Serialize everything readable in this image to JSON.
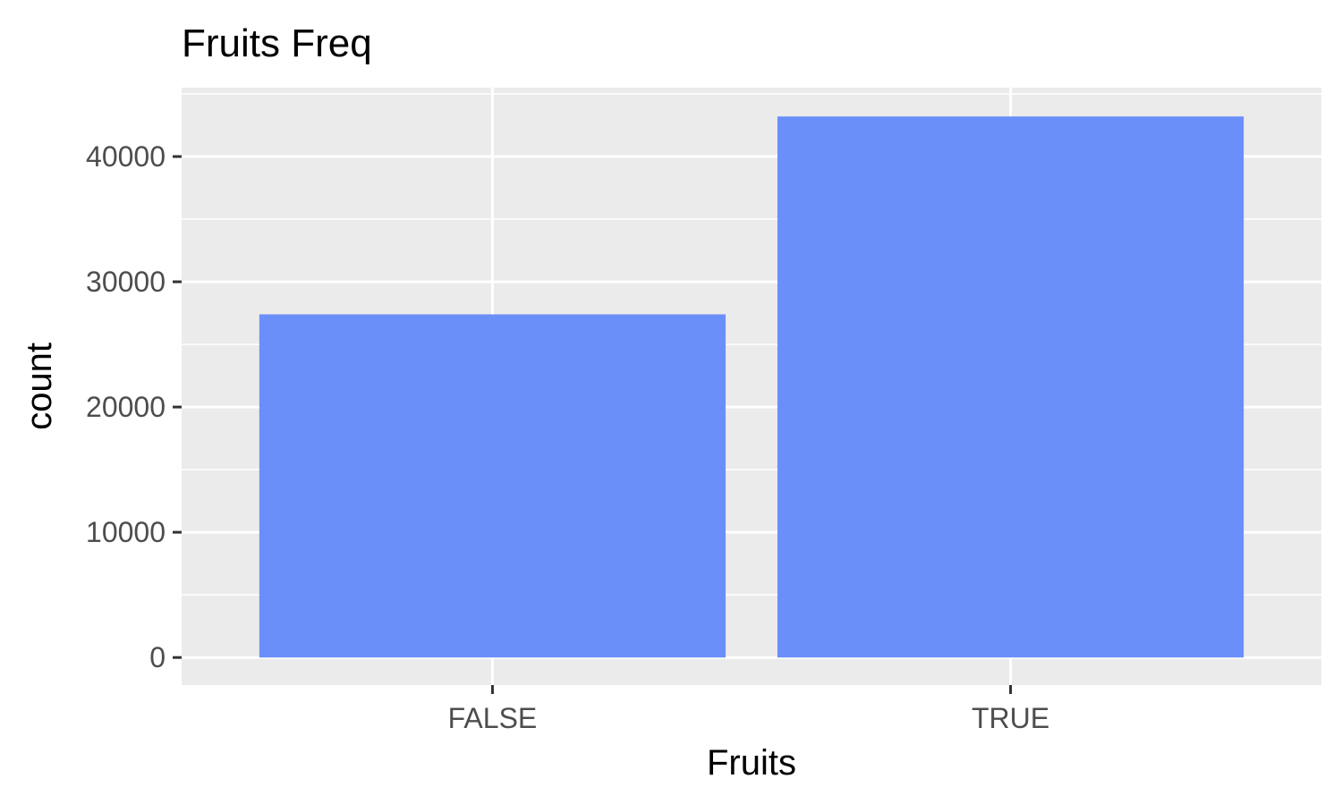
{
  "chart_data": {
    "type": "bar",
    "title": "Fruits Freq",
    "xlabel": "Fruits",
    "ylabel": "count",
    "categories": [
      "FALSE",
      "TRUE"
    ],
    "values": [
      27400,
      43200
    ],
    "ylim": [
      -2200,
      45500
    ],
    "yticks": [
      0,
      10000,
      20000,
      30000,
      40000
    ],
    "ytick_labels": [
      "0",
      "10000",
      "20000",
      "30000",
      "40000"
    ],
    "grid": true,
    "colors": {
      "bar": "#6b8ff9",
      "panel": "#ebebeb",
      "grid": "#ffffff",
      "tick": "#333333"
    }
  }
}
